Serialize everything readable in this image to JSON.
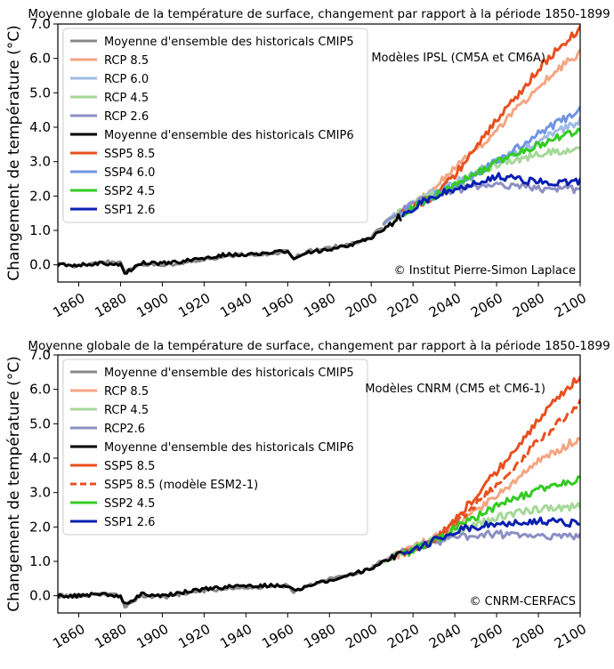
{
  "chart_data": [
    {
      "type": "line",
      "title": "Moyenne globale de la température de surface, changement par rapport à la période 1850-1899",
      "xlabel": "",
      "ylabel": "Changement de température (°C)",
      "xlim": [
        1850,
        2100
      ],
      "ylim": [
        -0.5,
        7.0
      ],
      "xticks": [
        "1860",
        "1880",
        "1900",
        "1920",
        "1940",
        "1960",
        "1980",
        "2000",
        "2020",
        "2040",
        "2060",
        "2080",
        "2100"
      ],
      "yticks": [
        "0.0",
        "1.0",
        "2.0",
        "3.0",
        "4.0",
        "5.0",
        "6.0",
        "7.0"
      ],
      "annotation": "Modèles IPSL (CM5A et CM6A)",
      "credit": "© Institut Pierre-Simon Laplace",
      "legend_position": "top-left",
      "series": [
        {
          "name": "Moyenne d'ensemble des historicals CMIP5",
          "color": "#888888",
          "dash": false,
          "x": [
            1850,
            1860,
            1870,
            1880,
            1882,
            1890,
            1900,
            1910,
            1920,
            1930,
            1940,
            1950,
            1960,
            1963,
            1970,
            1980,
            1990,
            2000,
            2005
          ],
          "y": [
            0.0,
            -0.05,
            0.1,
            0.05,
            -0.2,
            0.0,
            0.0,
            0.05,
            0.15,
            0.25,
            0.3,
            0.3,
            0.4,
            0.2,
            0.4,
            0.5,
            0.6,
            0.8,
            1.1
          ]
        },
        {
          "name": "RCP 8.5",
          "color": "#f4a582",
          "dash": false,
          "x": [
            2006,
            2020,
            2040,
            2060,
            2080,
            2090,
            2100
          ],
          "y": [
            1.2,
            1.7,
            2.8,
            3.9,
            5.2,
            5.7,
            6.2
          ]
        },
        {
          "name": "RCP 6.0",
          "color": "#9fbbe8",
          "dash": false,
          "x": [
            2006,
            2020,
            2040,
            2060,
            2080,
            2100
          ],
          "y": [
            1.2,
            1.8,
            2.4,
            3.0,
            3.6,
            4.2
          ]
        },
        {
          "name": "RCP 4.5",
          "color": "#a6d89a",
          "dash": false,
          "x": [
            2006,
            2020,
            2040,
            2060,
            2080,
            2100
          ],
          "y": [
            1.2,
            1.8,
            2.3,
            2.9,
            3.2,
            3.4
          ]
        },
        {
          "name": "RCP 2.6",
          "color": "#8c8fc4",
          "dash": false,
          "x": [
            2006,
            2020,
            2040,
            2060,
            2080,
            2100
          ],
          "y": [
            1.2,
            1.8,
            2.2,
            2.3,
            2.2,
            2.2
          ]
        },
        {
          "name": "Moyenne d'ensemble des historicals CMIP6",
          "color": "#000000",
          "dash": false,
          "x": [
            1850,
            1860,
            1870,
            1880,
            1882,
            1890,
            1900,
            1910,
            1920,
            1930,
            1940,
            1950,
            1960,
            1963,
            1970,
            1980,
            1990,
            2000,
            2014
          ],
          "y": [
            0.0,
            0.0,
            0.05,
            0.0,
            -0.25,
            0.05,
            0.05,
            0.1,
            0.2,
            0.3,
            0.3,
            0.35,
            0.4,
            0.2,
            0.35,
            0.45,
            0.55,
            0.8,
            1.4
          ]
        },
        {
          "name": "SSP5 8.5",
          "color": "#e8501f",
          "dash": false,
          "x": [
            2015,
            2030,
            2040,
            2050,
            2060,
            2070,
            2080,
            2090,
            2100
          ],
          "y": [
            1.5,
            2.0,
            2.6,
            3.4,
            4.2,
            4.9,
            5.7,
            6.3,
            6.9
          ]
        },
        {
          "name": "SSP4 6.0",
          "color": "#6f95e3",
          "dash": false,
          "x": [
            2015,
            2030,
            2040,
            2060,
            2080,
            2100
          ],
          "y": [
            1.5,
            2.0,
            2.3,
            3.0,
            3.8,
            4.5
          ]
        },
        {
          "name": "SSP2 4.5",
          "color": "#33cc22",
          "dash": false,
          "x": [
            2015,
            2030,
            2040,
            2060,
            2080,
            2100
          ],
          "y": [
            1.5,
            2.0,
            2.3,
            3.0,
            3.5,
            3.9
          ]
        },
        {
          "name": "SSP1 2.6",
          "color": "#0a1fb0",
          "dash": false,
          "x": [
            2015,
            2030,
            2040,
            2060,
            2080,
            2100
          ],
          "y": [
            1.5,
            2.0,
            2.2,
            2.6,
            2.4,
            2.4
          ]
        }
      ]
    },
    {
      "type": "line",
      "title": "Moyenne globale de la température de surface, changement par rapport à la période 1850-1899",
      "xlabel": "",
      "ylabel": "Changement de température (°C)",
      "xlim": [
        1850,
        2100
      ],
      "ylim": [
        -0.5,
        7.0
      ],
      "xticks": [
        "1860",
        "1880",
        "1900",
        "1920",
        "1940",
        "1960",
        "1980",
        "2000",
        "2020",
        "2040",
        "2060",
        "2080",
        "2100"
      ],
      "yticks": [
        "0.0",
        "1.0",
        "2.0",
        "3.0",
        "4.0",
        "5.0",
        "6.0",
        "7.0"
      ],
      "annotation": "Modèles CNRM (CM5 et CM6-1)",
      "credit": "© CNRM-CERFACS",
      "legend_position": "top-left",
      "series": [
        {
          "name": "Moyenne d'ensemble des historicals CMIP5",
          "color": "#888888",
          "dash": false,
          "x": [
            1850,
            1860,
            1870,
            1880,
            1882,
            1890,
            1900,
            1910,
            1920,
            1930,
            1940,
            1950,
            1960,
            1963,
            1970,
            1980,
            1990,
            2000,
            2005
          ],
          "y": [
            0.0,
            0.0,
            0.05,
            0.0,
            -0.3,
            0.0,
            -0.05,
            0.05,
            0.15,
            0.2,
            0.25,
            0.25,
            0.3,
            0.1,
            0.3,
            0.5,
            0.6,
            0.8,
            1.0
          ]
        },
        {
          "name": "RCP 8.5",
          "color": "#f4a582",
          "dash": false,
          "x": [
            2006,
            2020,
            2040,
            2060,
            2080,
            2100
          ],
          "y": [
            1.0,
            1.4,
            2.0,
            2.9,
            3.9,
            4.6
          ]
        },
        {
          "name": "RCP 4.5",
          "color": "#a6d89a",
          "dash": false,
          "x": [
            2006,
            2020,
            2040,
            2060,
            2080,
            2100
          ],
          "y": [
            1.0,
            1.4,
            1.8,
            2.3,
            2.5,
            2.6
          ]
        },
        {
          "name": "RCP2.6",
          "color": "#8c8fc4",
          "dash": false,
          "x": [
            2006,
            2020,
            2040,
            2060,
            2080,
            2100
          ],
          "y": [
            1.0,
            1.4,
            1.7,
            1.8,
            1.7,
            1.7
          ]
        },
        {
          "name": "Moyenne d'ensemble des historicals CMIP6",
          "color": "#000000",
          "dash": false,
          "x": [
            1850,
            1860,
            1870,
            1880,
            1882,
            1890,
            1900,
            1910,
            1920,
            1930,
            1940,
            1950,
            1960,
            1963,
            1970,
            1980,
            1990,
            2000,
            2014
          ],
          "y": [
            0.0,
            0.0,
            0.05,
            0.0,
            -0.25,
            0.05,
            0.0,
            0.1,
            0.2,
            0.25,
            0.3,
            0.3,
            0.3,
            0.15,
            0.3,
            0.45,
            0.6,
            0.8,
            1.2
          ]
        },
        {
          "name": "SSP5 8.5",
          "color": "#e8501f",
          "dash": false,
          "x": [
            2015,
            2030,
            2040,
            2050,
            2060,
            2070,
            2080,
            2090,
            2100
          ],
          "y": [
            1.2,
            1.6,
            2.2,
            2.9,
            3.6,
            4.3,
            5.1,
            5.8,
            6.4
          ]
        },
        {
          "name": "SSP5 8.5 (modèle ESM2-1)",
          "color": "#e8501f",
          "dash": true,
          "x": [
            2015,
            2030,
            2040,
            2060,
            2080,
            2100
          ],
          "y": [
            1.2,
            1.6,
            2.1,
            3.2,
            4.5,
            5.6
          ]
        },
        {
          "name": "SSP2 4.5",
          "color": "#33cc22",
          "dash": false,
          "x": [
            2015,
            2030,
            2040,
            2060,
            2080,
            2100
          ],
          "y": [
            1.2,
            1.6,
            2.0,
            2.6,
            3.1,
            3.4
          ]
        },
        {
          "name": "SSP1 2.6",
          "color": "#0a1fb0",
          "dash": false,
          "x": [
            2015,
            2030,
            2040,
            2060,
            2080,
            2100
          ],
          "y": [
            1.2,
            1.6,
            1.9,
            2.1,
            2.2,
            2.1
          ]
        }
      ]
    }
  ]
}
